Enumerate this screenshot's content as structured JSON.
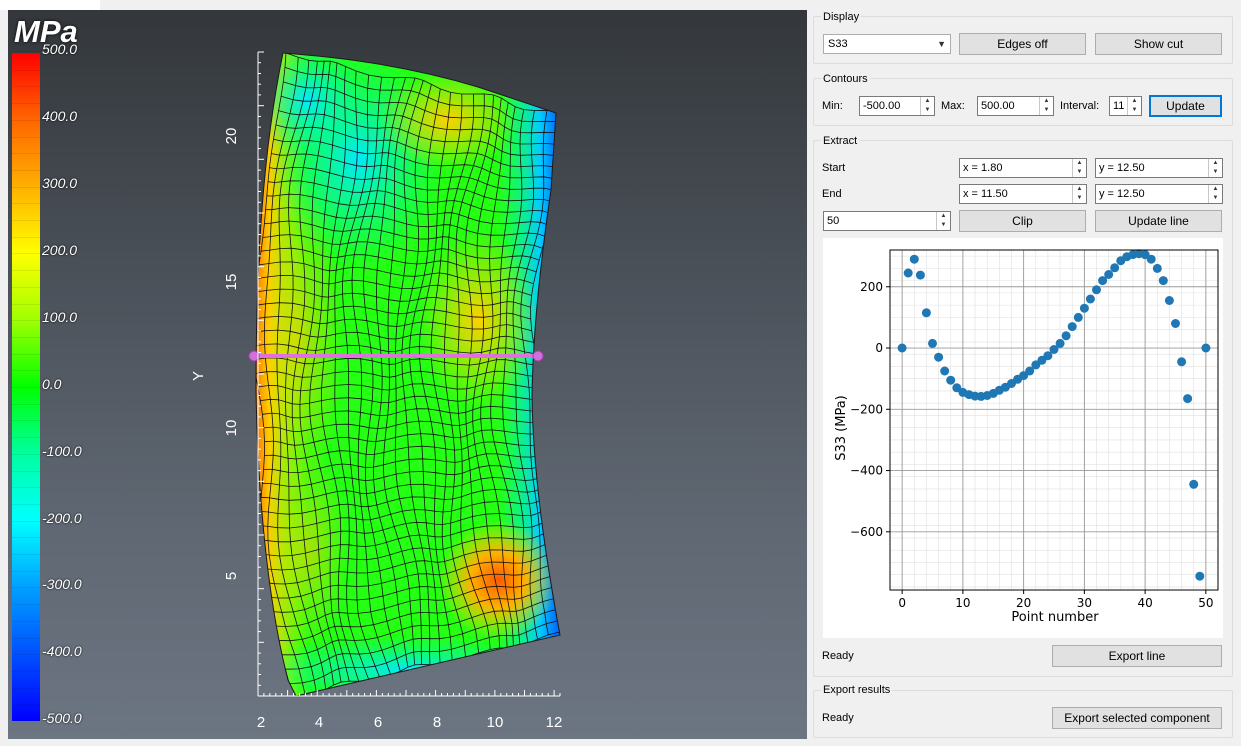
{
  "viewport": {
    "unit": "MPa",
    "colorbar_labels": [
      "500.0",
      "400.0",
      "300.0",
      "200.0",
      "100.0",
      "0.0",
      "-100.0",
      "-200.0",
      "-300.0",
      "-400.0",
      "-500.0"
    ],
    "axis_y_label": "Y",
    "axis_y_ticks": [
      "20",
      "15",
      "10",
      "5"
    ],
    "axis_x_ticks": [
      "2",
      "4",
      "6",
      "8",
      "10",
      "12"
    ]
  },
  "display": {
    "title": "Display",
    "component": "S33",
    "edges_label": "Edges off",
    "cut_label": "Show cut"
  },
  "contours": {
    "title": "Contours",
    "min_label": "Min:",
    "min_value": "-500.00",
    "max_label": "Max:",
    "max_value": "500.00",
    "interval_label": "Interval:",
    "interval_value": "11",
    "update_label": "Update"
  },
  "extract": {
    "title": "Extract",
    "start_label": "Start",
    "start_x": "x = 1.80",
    "start_y": "y = 12.50",
    "end_label": "End",
    "end_x": "x = 11.50",
    "end_y": "y = 12.50",
    "points": "50",
    "clip_label": "Clip",
    "update_line_label": "Update line",
    "status": "Ready",
    "export_line_label": "Export line"
  },
  "export": {
    "title": "Export results",
    "status": "Ready",
    "export_label": "Export selected component"
  },
  "chart_data": {
    "type": "scatter",
    "title": "",
    "xlabel": "Point number",
    "ylabel": "S33 (MPa)",
    "xlim": [
      -2,
      52
    ],
    "ylim": [
      -790,
      320
    ],
    "x_ticks": [
      0,
      10,
      20,
      30,
      40,
      50
    ],
    "y_ticks": [
      200,
      0,
      -200,
      -400,
      -600
    ],
    "grid": true,
    "color": "#1f77b4",
    "x": [
      0,
      1,
      2,
      3,
      4,
      5,
      6,
      7,
      8,
      9,
      10,
      11,
      12,
      13,
      14,
      15,
      16,
      17,
      18,
      19,
      20,
      21,
      22,
      23,
      24,
      25,
      26,
      27,
      28,
      29,
      30,
      31,
      32,
      33,
      34,
      35,
      36,
      37,
      38,
      39,
      40,
      41,
      42,
      43,
      44,
      45,
      46,
      47,
      48,
      49,
      50
    ],
    "y": [
      0,
      245,
      290,
      238,
      115,
      15,
      -30,
      -75,
      -105,
      -130,
      -145,
      -152,
      -157,
      -158,
      -155,
      -148,
      -138,
      -128,
      -116,
      -102,
      -90,
      -75,
      -55,
      -40,
      -25,
      -5,
      15,
      40,
      70,
      100,
      130,
      160,
      190,
      220,
      240,
      262,
      285,
      298,
      305,
      308,
      305,
      290,
      260,
      220,
      155,
      80,
      -45,
      -165,
      -445,
      -745,
      0
    ]
  }
}
